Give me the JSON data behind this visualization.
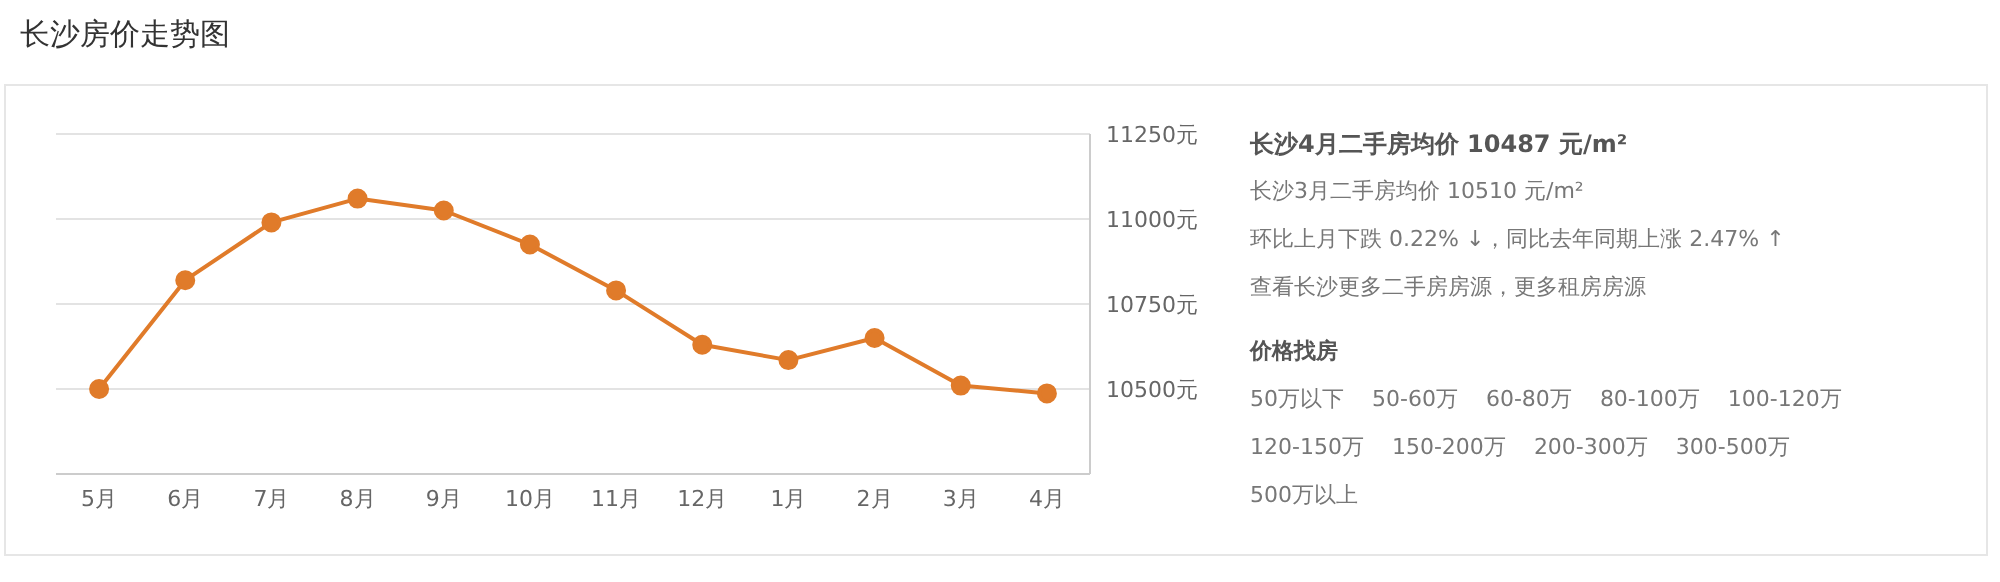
{
  "chart_data": [
    {
      "type": "line",
      "title": "长沙房价走势图",
      "categories": [
        "5月",
        "6月",
        "7月",
        "8月",
        "9月",
        "10月",
        "11月",
        "12月",
        "1月",
        "2月",
        "3月",
        "4月"
      ],
      "series": [
        {
          "color": "#e07b2a",
          "values": [
            10500,
            10820,
            10990,
            11060,
            11025,
            10925,
            10790,
            10630,
            10585,
            10650,
            10510,
            10487
          ]
        }
      ],
      "ylim": [
        10250,
        11250
      ],
      "yticks": [
        {
          "value": 10500,
          "label": "10500元"
        },
        {
          "value": 10750,
          "label": "10750元"
        },
        {
          "value": 11000,
          "label": "11000元"
        },
        {
          "value": 11250,
          "label": "11250元"
        }
      ],
      "grid": "y",
      "marker": "circle",
      "line_style": "solid"
    },
    {
      "type": "other",
      "annotations": [
        "长沙4月二手房均价 10487 元/m²",
        "长沙3月二手房均价 10510 元/m²",
        "环比上月下跌 0.22% ↓，同比去年同期上涨 2.47% ↑",
        "查看长沙更多二手房房源，更多租房房源",
        "价格找房",
        "50万以下",
        "50-60万",
        "60-80万",
        "80-100万",
        "100-120万",
        "120-150万",
        "150-200万",
        "200-300万",
        "300-500万",
        "500万以上"
      ]
    }
  ]
}
